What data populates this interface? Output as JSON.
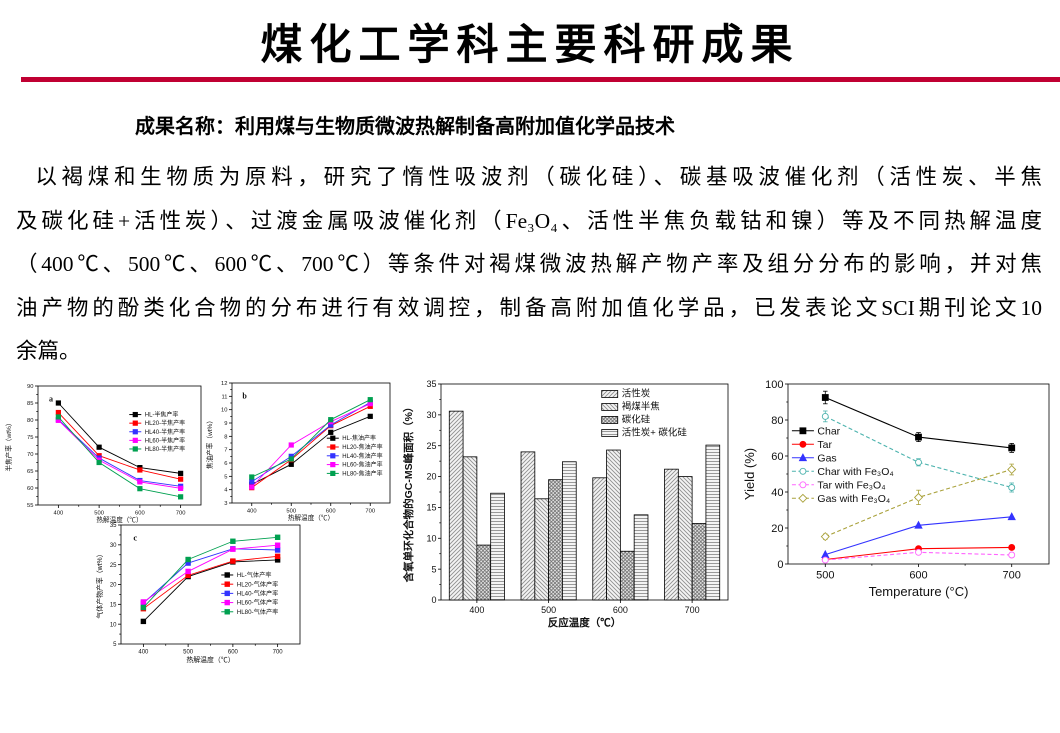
{
  "slide": {
    "title": "煤化工学科主要科研成果",
    "subtitle": "成果名称：利用煤与生物质微波热解制备高附加值化学品技术",
    "body_lines": [
      "以褐煤和生物质为原料，研究了惰性吸波剂（碳化硅）、碳基吸波催化剂（活性炭、半焦",
      "及碳化硅+活性炭）、过渡金属吸波催化剂（Fe₃O₄、活性半焦负载钴和镍）等及不同热解温度",
      "（400℃、500℃、600℃、700℃）等条件对褐煤微波热解产物产率及组分分布的影响，并对焦",
      "油产物的酚类化合物的分布进行有效调控，制备高附加值化学品，已发表论文SCI期刊论文10",
      "余篇。"
    ],
    "accent_color": "#c00032"
  },
  "chart_data": [
    {
      "id": "a",
      "type": "line",
      "panel_label": "a",
      "x": [
        400,
        500,
        600,
        700
      ],
      "xlabel": "热解温度（℃）",
      "ylabel": "半焦产率（wt%）",
      "ylim": [
        55,
        90
      ],
      "ytick_step": 5,
      "legend_pos": [
        0.56,
        0.24
      ],
      "series": [
        {
          "name": "HL-半焦产率",
          "color": "#000000",
          "marker": "square",
          "values": [
            85.0,
            72.0,
            66.0,
            64.3
          ]
        },
        {
          "name": "HL20-半焦产率",
          "color": "#ff0000",
          "marker": "square",
          "values": [
            82.2,
            69.5,
            65.3,
            62.6
          ]
        },
        {
          "name": "HL40-半焦产率",
          "color": "#3333ff",
          "marker": "square",
          "values": [
            80.1,
            68.8,
            62.2,
            60.5
          ]
        },
        {
          "name": "HL60-半焦产率",
          "color": "#ff00ff",
          "marker": "square",
          "values": [
            79.9,
            68.2,
            61.8,
            59.9
          ]
        },
        {
          "name": "HL80-半焦产率",
          "color": "#00a050",
          "marker": "square",
          "values": [
            80.9,
            67.5,
            59.8,
            57.4
          ]
        }
      ]
    },
    {
      "id": "b",
      "type": "line",
      "panel_label": "b",
      "x": [
        400,
        500,
        600,
        700
      ],
      "xlabel": "热解温度（℃）",
      "ylabel": "焦油产率（wt%）",
      "ylim": [
        3,
        12
      ],
      "ytick_step": 1,
      "legend_pos": [
        0.6,
        0.46
      ],
      "series": [
        {
          "name": "HL-焦油产率",
          "color": "#000000",
          "marker": "square",
          "values": [
            4.4,
            5.9,
            8.3,
            9.5
          ]
        },
        {
          "name": "HL20-焦油产率",
          "color": "#ff0000",
          "marker": "square",
          "values": [
            4.15,
            6.25,
            8.8,
            10.25
          ]
        },
        {
          "name": "HL40-焦油产率",
          "color": "#3333ff",
          "marker": "square",
          "values": [
            4.6,
            6.5,
            8.85,
            10.55
          ]
        },
        {
          "name": "HL60-焦油产率",
          "color": "#ff00ff",
          "marker": "square",
          "values": [
            4.2,
            7.35,
            9.1,
            10.45
          ]
        },
        {
          "name": "HL80-焦油产率",
          "color": "#00a050",
          "marker": "square",
          "values": [
            4.95,
            6.3,
            9.25,
            10.75
          ]
        }
      ]
    },
    {
      "id": "c",
      "type": "line",
      "panel_label": "c",
      "x": [
        400,
        500,
        600,
        700
      ],
      "xlabel": "热解温度（℃）",
      "ylabel": "气体产物产率（wt%）",
      "ylim": [
        5,
        35
      ],
      "ytick_step": 5,
      "legend_pos": [
        0.56,
        0.42
      ],
      "series": [
        {
          "name": "HL-气体产率",
          "color": "#000000",
          "marker": "square",
          "values": [
            10.7,
            22.0,
            25.7,
            26.2
          ]
        },
        {
          "name": "HL20-气体产率",
          "color": "#ff0000",
          "marker": "square",
          "values": [
            13.9,
            22.3,
            25.9,
            27.1
          ]
        },
        {
          "name": "HL40-气体产率",
          "color": "#3333ff",
          "marker": "square",
          "values": [
            15.3,
            25.4,
            29.0,
            28.7
          ]
        },
        {
          "name": "HL60-气体产率",
          "color": "#ff00ff",
          "marker": "square",
          "values": [
            15.6,
            23.3,
            28.9,
            29.9
          ]
        },
        {
          "name": "HL80-气体产率",
          "color": "#00a050",
          "marker": "square",
          "values": [
            14.2,
            26.3,
            30.9,
            31.9
          ]
        }
      ]
    },
    {
      "id": "bar",
      "type": "bar",
      "categories": [
        "400",
        "500",
        "600",
        "700"
      ],
      "xlabel": "反应温度（℃）",
      "ylabel": "含氧单环化合物的GC-MS峰面积（%）",
      "ylim": [
        0,
        35
      ],
      "ytick_step": 5,
      "legend_pos": [
        0.56,
        0.03
      ],
      "series": [
        {
          "name": "活性炭",
          "pattern": "diagonal-up",
          "values": [
            30.6,
            24.0,
            19.8,
            21.2
          ]
        },
        {
          "name": "褐煤半焦",
          "pattern": "diagonal-down",
          "values": [
            23.2,
            16.4,
            24.3,
            20.0
          ]
        },
        {
          "name": "碳化硅",
          "pattern": "crosshatch",
          "values": [
            8.9,
            19.5,
            7.9,
            12.4
          ]
        },
        {
          "name": "活性炭+ 碳化硅",
          "pattern": "horizontal",
          "values": [
            17.3,
            22.4,
            13.8,
            25.1
          ]
        }
      ]
    },
    {
      "id": "right",
      "type": "line",
      "x": [
        500,
        600,
        700
      ],
      "xlabel": "Temperature (°C)",
      "ylabel": "Yield (%)",
      "ylim": [
        0,
        100
      ],
      "ytick_step": 20,
      "legend_pos": [
        0.015,
        0.26
      ],
      "series": [
        {
          "name": "Char",
          "color": "#000000",
          "marker": "square",
          "filled": true,
          "values": [
            92.5,
            70.5,
            64.5
          ],
          "error": [
            3.5,
            2.5,
            2.5
          ]
        },
        {
          "name": "Tar",
          "color": "#ff0000",
          "marker": "circle",
          "filled": true,
          "values": [
            2.5,
            8.5,
            9.2
          ]
        },
        {
          "name": "Gas",
          "color": "#3333ff",
          "marker": "triangle",
          "filled": true,
          "values": [
            5.2,
            21.5,
            26.2
          ]
        },
        {
          "name": "Char with Fe₃O₄",
          "color": "#4db3ae",
          "marker": "circle",
          "filled": false,
          "dashed": true,
          "values": [
            82.0,
            56.5,
            42.5
          ],
          "error": [
            3.0,
            2.0,
            2.5
          ]
        },
        {
          "name": "Tar with Fe₃O₄",
          "color": "#ff66ff",
          "marker": "circle",
          "filled": false,
          "dashed": true,
          "values": [
            2.2,
            6.5,
            5.0
          ]
        },
        {
          "name": "Gas with Fe₃O₄",
          "color": "#aaa23c",
          "marker": "diamond",
          "filled": false,
          "dashed": true,
          "values": [
            15.2,
            37.0,
            52.5
          ],
          "error": [
            1.5,
            4.0,
            3.0
          ]
        }
      ]
    }
  ]
}
